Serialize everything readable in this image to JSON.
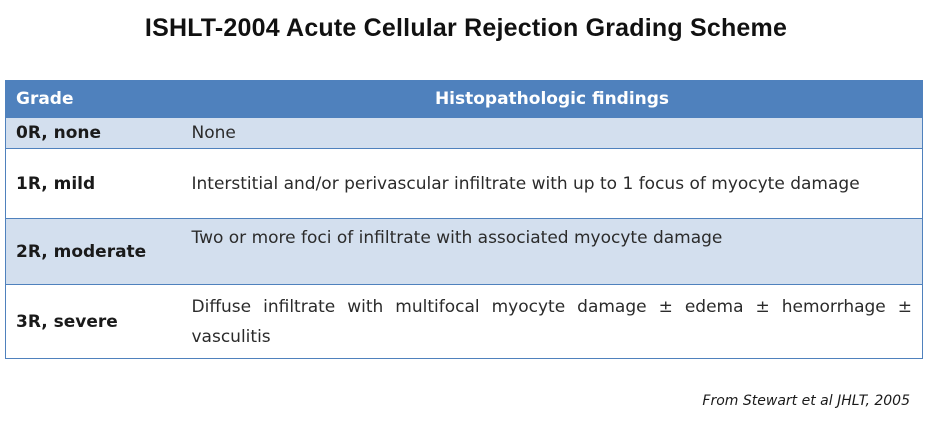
{
  "title": "ISHLT-2004 Acute Cellular Rejection Grading Scheme",
  "table": {
    "headers": [
      "Grade",
      "Histopathologic findings"
    ],
    "rows": [
      {
        "grade": "0R, none",
        "finding": "None"
      },
      {
        "grade": "1R, mild",
        "finding": "Interstitial and/or perivascular infiltrate with up to 1 focus of myocyte damage"
      },
      {
        "grade": "2R, moderate",
        "finding": "Two or more foci of infiltrate with associated myocyte damage"
      },
      {
        "grade": "3R, severe",
        "finding": "Diffuse infiltrate with multifocal myocyte damage ± edema ± hemorrhage ± vasculitis"
      }
    ]
  },
  "source": "From Stewart et al JHLT, 2005",
  "colors": {
    "header_bg": "#4f81bd",
    "shaded_row_bg": "#d3dfee",
    "border": "#4f81bd"
  }
}
